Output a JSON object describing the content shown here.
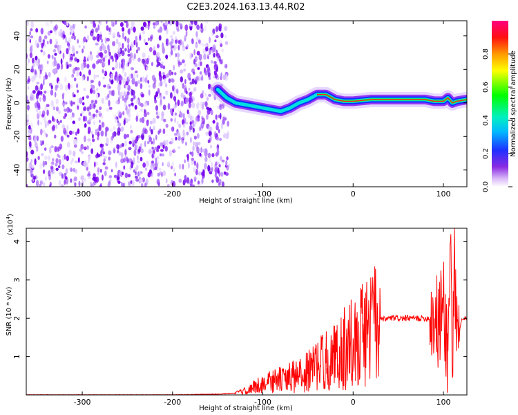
{
  "title": "C2E3.2024.163.13.44.R02",
  "chart_data": [
    {
      "type": "heatmap",
      "xlabel": "Height of straight line (km)",
      "ylabel": "Frequency (Hz)",
      "xlim": [
        -362,
        126
      ],
      "ylim": [
        -50,
        49
      ],
      "xticks": [
        -300,
        -200,
        -100,
        0,
        100
      ],
      "xtick_labels": [
        "-300",
        "-200",
        "-100",
        "0",
        "100"
      ],
      "yticks": [
        -40,
        -20,
        0,
        20,
        40
      ],
      "ytick_labels": [
        "-40",
        "-20",
        "0",
        "20",
        "40"
      ],
      "colorbar": {
        "label": "Normalized spectral amplitude",
        "range": [
          0,
          1
        ],
        "ticks": [
          0.0,
          0.2,
          0.4,
          0.6,
          0.8
        ],
        "tick_labels": [
          "0.0",
          "0.2",
          "0.4",
          "0.6",
          "0.8"
        ],
        "colormap": "rainbow (white-purple-blue-cyan-green-yellow-red-magenta)"
      },
      "noise_region_x": [
        -362,
        -137
      ],
      "signal_trace": {
        "x": [
          -150,
          -140,
          -130,
          -120,
          -110,
          -100,
          -90,
          -80,
          -70,
          -60,
          -50,
          -40,
          -30,
          -20,
          -10,
          0,
          20,
          40,
          60,
          80,
          90,
          100,
          105,
          110,
          115,
          126
        ],
        "y": [
          8,
          3,
          0,
          -1,
          -2,
          -3,
          -4,
          -5,
          -3,
          0,
          2,
          5,
          5,
          2,
          1,
          1,
          2,
          2,
          2,
          2,
          1,
          1,
          3,
          0,
          1,
          2
        ]
      },
      "grid": false
    },
    {
      "type": "line",
      "xlabel": "Height of straight line (km)",
      "ylabel": "SNR (10 * v/v)",
      "multiplier_label": "(x10",
      "multiplier_exp": "4",
      "multiplier_close": ")",
      "xlim": [
        -362,
        126
      ],
      "ylim": [
        0,
        4.35
      ],
      "xticks": [
        -300,
        -200,
        -100,
        0,
        100
      ],
      "xtick_labels": [
        "-300",
        "-200",
        "-100",
        "0",
        "100"
      ],
      "yticks": [
        1,
        2,
        3,
        4
      ],
      "ytick_labels": [
        "1",
        "2",
        "3",
        "4"
      ],
      "series": [
        {
          "color": "#ff0000",
          "x": [
            -362,
            -300,
            -200,
            -150,
            -130,
            -120,
            -110,
            -100,
            -90,
            -80,
            -70,
            -60,
            -50,
            -40,
            -30,
            -20,
            -10,
            0,
            10,
            20,
            30,
            40,
            50,
            60,
            70,
            80,
            90,
            95,
            100,
            105,
            108,
            110,
            112,
            115,
            120,
            126
          ],
          "y": [
            0.0,
            0.0,
            0.0,
            0.02,
            0.05,
            0.1,
            0.2,
            0.3,
            0.35,
            0.4,
            0.45,
            0.5,
            0.6,
            0.8,
            0.9,
            1.0,
            1.2,
            1.4,
            1.6,
            1.8,
            1.95,
            2.0,
            2.0,
            2.0,
            2.0,
            2.0,
            2.0,
            1.8,
            2.5,
            1.0,
            4.3,
            0.3,
            4.0,
            1.2,
            1.95,
            2.0
          ]
        }
      ],
      "grid": false
    }
  ]
}
